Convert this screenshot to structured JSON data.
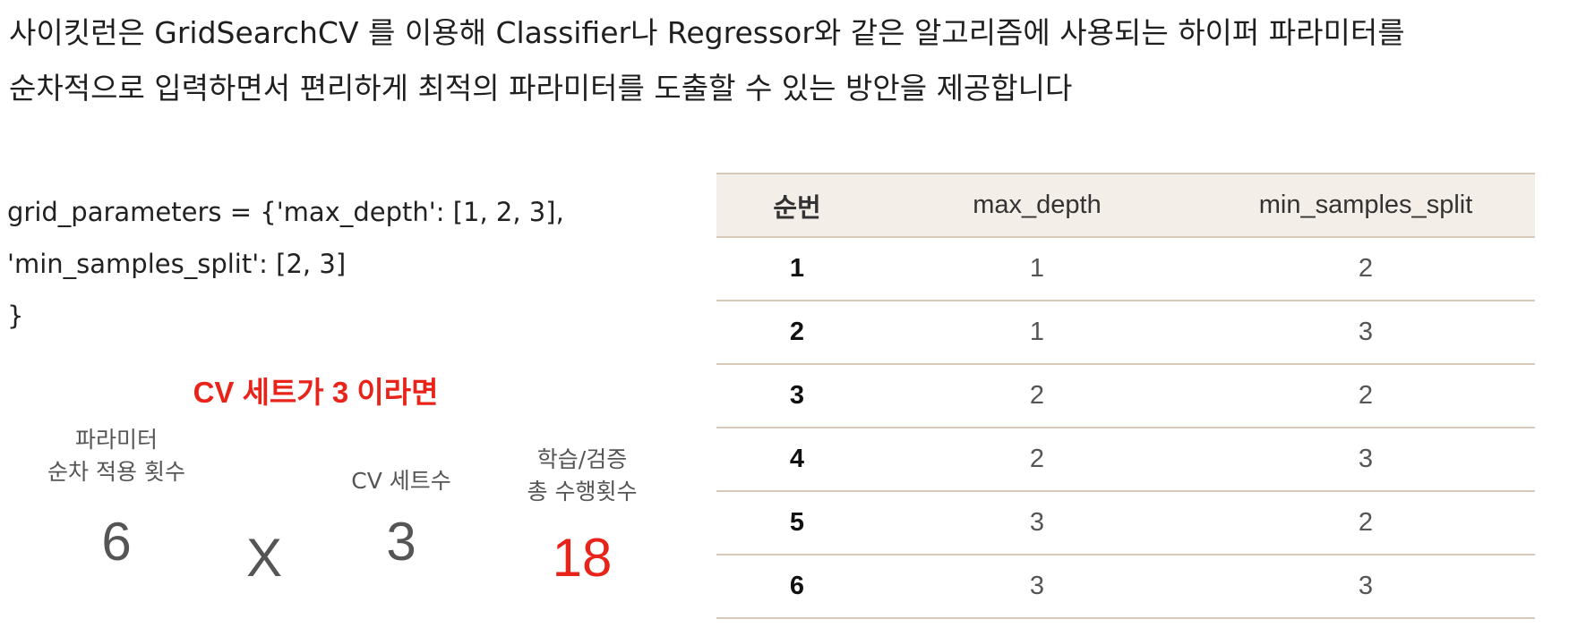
{
  "intro": {
    "line1": "사이킷런은 GridSearchCV 를 이용해 Classifier나 Regressor와 같은 알고리즘에 사용되는 하이퍼 파라미터를",
    "line2": "순차적으로 입력하면서 편리하게 최적의 파라미터를 도출할 수 있는 방안을 제공합니다"
  },
  "code": {
    "line1": "grid_parameters = {'max_depth': [1, 2, 3],",
    "line2": "'min_samples_split': [2, 3]",
    "line3": "}"
  },
  "cv_heading": "CV 세트가 3 이라면",
  "calc": {
    "param_label": "파라미터\n순차 적용 횟수",
    "param_value": "6",
    "times": "X",
    "cv_label": "CV 세트수",
    "cv_value": "3",
    "total_label": "학습/검증\n총 수행횟수",
    "total_value": "18"
  },
  "table": {
    "headers": [
      "순번",
      "max_depth",
      "min_samples_split"
    ],
    "rows": [
      [
        "1",
        "1",
        "2"
      ],
      [
        "2",
        "1",
        "3"
      ],
      [
        "3",
        "2",
        "2"
      ],
      [
        "4",
        "2",
        "3"
      ],
      [
        "5",
        "3",
        "2"
      ],
      [
        "6",
        "3",
        "3"
      ]
    ]
  },
  "colors": {
    "accent_red": "#e8231a",
    "table_header_bg": "#f4eee8",
    "table_rule": "#d8c9bb"
  }
}
